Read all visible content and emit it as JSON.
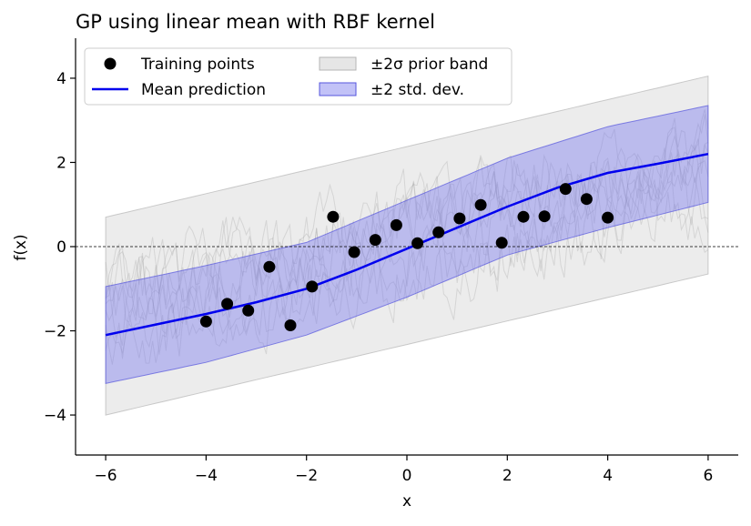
{
  "chart_data": {
    "type": "line",
    "title": "GP using linear mean with RBF kernel",
    "xlabel": "x",
    "ylabel": "f(x)",
    "xlim": [
      -6.6,
      6.6
    ],
    "ylim": [
      -4.95,
      4.95
    ],
    "x_ticks": [
      -6,
      -4,
      -2,
      0,
      2,
      4,
      6
    ],
    "y_ticks": [
      -4,
      -2,
      0,
      2,
      4
    ],
    "x_tick_labels": [
      "−6",
      "−4",
      "−2",
      "0",
      "2",
      "4",
      "6"
    ],
    "y_tick_labels": [
      "−4",
      "−2",
      "0",
      "2",
      "4"
    ],
    "grid": false,
    "legend_position": "top-left",
    "reference_line_y": 0,
    "colors": {
      "mean": "#0000ee",
      "points": "#000000",
      "posterior_band": "#7777ee",
      "prior_band": "#c8c8c8",
      "prior_samples": "#999999"
    },
    "series": [
      {
        "name": "Training points",
        "kind": "scatter",
        "x": [
          -4.0,
          -3.58,
          -3.16,
          -2.74,
          -2.32,
          -1.89,
          -1.47,
          -1.05,
          -0.63,
          -0.21,
          0.21,
          0.63,
          1.05,
          1.47,
          1.89,
          2.32,
          2.74,
          3.16,
          3.58,
          4.0
        ],
        "y": [
          -1.78,
          -1.36,
          -1.52,
          -0.48,
          -1.87,
          -0.95,
          0.71,
          -0.13,
          0.16,
          0.51,
          0.08,
          0.34,
          0.67,
          0.99,
          0.09,
          0.71,
          0.72,
          1.37,
          1.13,
          0.69
        ]
      },
      {
        "name": "Mean prediction",
        "kind": "line",
        "x": [
          -6,
          -5,
          -4,
          -3,
          -2,
          -1,
          0,
          1,
          2,
          3,
          4,
          5,
          6
        ],
        "y": [
          -2.1,
          -1.85,
          -1.6,
          -1.32,
          -1.0,
          -0.55,
          -0.05,
          0.45,
          0.95,
          1.4,
          1.75,
          1.97,
          2.2
        ]
      },
      {
        "name": "±2σ prior band",
        "kind": "band",
        "x": [
          -6,
          6
        ],
        "lower": [
          -4.0,
          -0.65
        ],
        "upper": [
          0.7,
          4.05
        ]
      },
      {
        "name": "±2 std. dev.",
        "kind": "band",
        "x": [
          -6,
          -4,
          -2,
          0,
          2,
          4,
          6
        ],
        "lower": [
          -3.25,
          -2.75,
          -2.1,
          -1.2,
          -0.2,
          0.45,
          1.05
        ],
        "upper": [
          -0.95,
          -0.45,
          0.1,
          1.1,
          2.1,
          2.85,
          3.35
        ]
      }
    ],
    "prior_samples": {
      "count": 8,
      "x_range": [
        -6,
        6
      ],
      "mean_line": [
        [
          -6,
          -1.65
        ],
        [
          6,
          1.7
        ]
      ],
      "noise_amplitude": 1.0
    }
  }
}
